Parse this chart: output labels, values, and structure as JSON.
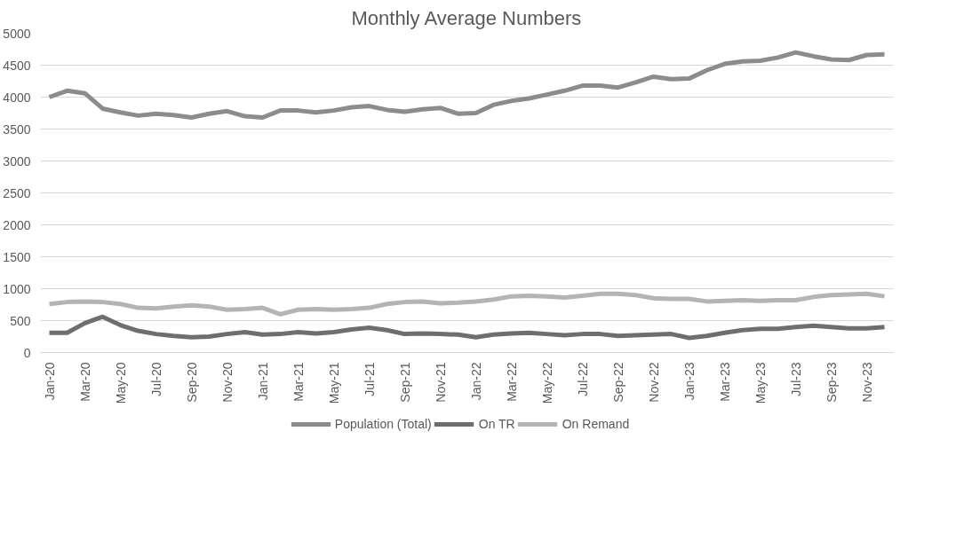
{
  "chart_data": {
    "type": "line",
    "title": "Monthly Average Numbers",
    "categories": [
      "Jan-20",
      null,
      "Mar-20",
      null,
      "May-20",
      null,
      "Jul-20",
      null,
      "Sep-20",
      null,
      "Nov-20",
      null,
      "Jan-21",
      null,
      "Mar-21",
      null,
      "May-21",
      null,
      "Jul-21",
      null,
      "Sep-21",
      null,
      "Nov-21",
      null,
      "Jan-22",
      null,
      "Mar-22",
      null,
      "May-22",
      null,
      "Jul-22",
      null,
      "Sep-22",
      null,
      "Nov-22",
      null,
      "Jan-23",
      null,
      "Mar-23",
      null,
      "May-23",
      null,
      "Jul-23",
      null,
      "Sep-23",
      null,
      "Nov-23",
      null
    ],
    "series": [
      {
        "name": "Population (Total)",
        "color": "#8c8c8c",
        "values": [
          4000,
          4100,
          4060,
          3820,
          3760,
          3710,
          3740,
          3720,
          3680,
          3740,
          3780,
          3700,
          3680,
          3790,
          3790,
          3760,
          3790,
          3840,
          3860,
          3800,
          3770,
          3810,
          3830,
          3740,
          3750,
          3880,
          3940,
          3980,
          4040,
          4100,
          4180,
          4180,
          4150,
          4230,
          4320,
          4280,
          4290,
          4420,
          4520,
          4560,
          4570,
          4620,
          4700,
          4640,
          4590,
          4580,
          4660,
          4670
        ]
      },
      {
        "name": "On TR",
        "color": "#6e6e6e",
        "values": [
          310,
          310,
          460,
          560,
          430,
          340,
          290,
          260,
          240,
          250,
          290,
          320,
          280,
          290,
          320,
          300,
          320,
          360,
          390,
          350,
          290,
          300,
          290,
          280,
          240,
          280,
          300,
          310,
          290,
          270,
          290,
          290,
          260,
          270,
          280,
          290,
          230,
          260,
          310,
          350,
          370,
          370,
          400,
          420,
          400,
          380,
          380,
          400
        ]
      },
      {
        "name": "On Remand",
        "color": "#b4b4b4",
        "values": [
          760,
          790,
          800,
          790,
          760,
          700,
          690,
          720,
          740,
          720,
          670,
          680,
          700,
          600,
          670,
          680,
          670,
          680,
          700,
          760,
          790,
          800,
          770,
          780,
          800,
          830,
          880,
          890,
          880,
          860,
          890,
          920,
          920,
          900,
          850,
          840,
          840,
          800,
          810,
          820,
          810,
          820,
          820,
          870,
          900,
          910,
          920,
          880
        ]
      }
    ],
    "ylim": [
      0,
      5000
    ],
    "yticks": [
      0,
      500,
      1000,
      1500,
      2000,
      2500,
      3000,
      3500,
      4000,
      4500,
      5000
    ],
    "grid": "y",
    "legend": "bottom",
    "marker": "none",
    "line_style": "solid"
  }
}
